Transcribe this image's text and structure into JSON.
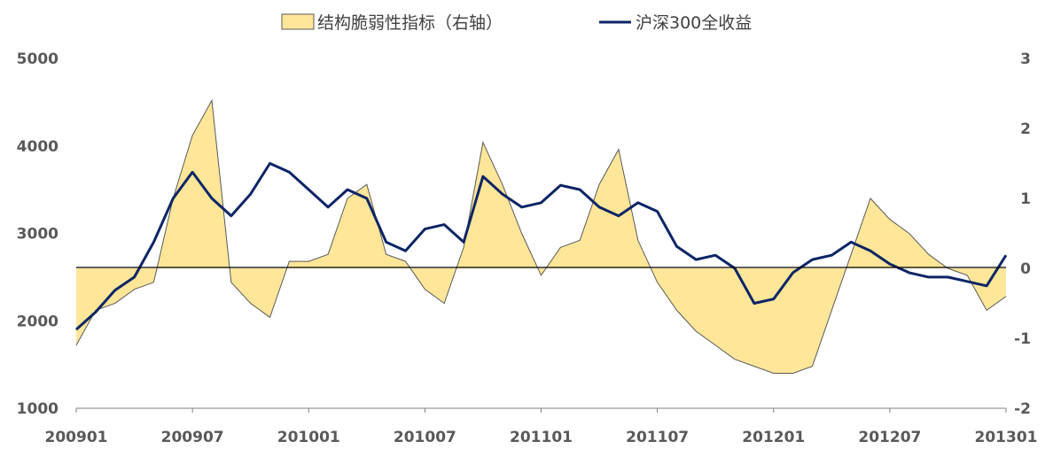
{
  "chart_data": {
    "type": "area+line",
    "legend": [
      {
        "label": "结构脆弱性指标（右轴）",
        "kind": "area",
        "color": "#FFE699",
        "stroke": "#595959"
      },
      {
        "label": "沪深300全收益",
        "kind": "line",
        "color": "#0D2566"
      }
    ],
    "x_ticks": [
      "200901",
      "200907",
      "201001",
      "201007",
      "201101",
      "201107",
      "201201",
      "201207",
      "201301"
    ],
    "y_left": {
      "ticks": [
        "5000",
        "4000",
        "3000",
        "2000",
        "1000"
      ],
      "lim": [
        1000,
        5000
      ]
    },
    "y_right": {
      "ticks": [
        "3",
        "2",
        "1",
        "0",
        "-1",
        "-2"
      ],
      "lim": [
        -2,
        3
      ]
    },
    "grid": false,
    "legend_placement": "top",
    "x_range": [
      "2009-01",
      "2013-01"
    ],
    "series": [
      {
        "name": "结构脆弱性指标（右轴）",
        "axis": "right",
        "x": [
          "2009-01",
          "2009-02",
          "2009-03",
          "2009-04",
          "2009-05",
          "2009-06",
          "2009-07",
          "2009-08",
          "2009-09",
          "2009-10",
          "2009-11",
          "2009-12",
          "2010-01",
          "2010-02",
          "2010-03",
          "2010-04",
          "2010-05",
          "2010-06",
          "2010-07",
          "2010-08",
          "2010-09",
          "2010-10",
          "2010-11",
          "2010-12",
          "2011-01",
          "2011-02",
          "2011-03",
          "2011-04",
          "2011-05",
          "2011-06",
          "2011-07",
          "2011-08",
          "2011-09",
          "2011-10",
          "2011-11",
          "2011-12",
          "2012-01",
          "2012-02",
          "2012-03",
          "2012-04",
          "2012-05",
          "2012-06",
          "2012-07",
          "2012-08",
          "2012-09",
          "2012-10",
          "2012-11",
          "2012-12",
          "2013-01"
        ],
        "values": [
          -1.1,
          -0.6,
          -0.5,
          -0.3,
          -0.2,
          1.0,
          1.9,
          2.4,
          -0.2,
          -0.5,
          -0.7,
          0.1,
          0.1,
          0.2,
          1.0,
          1.2,
          0.2,
          0.1,
          -0.3,
          -0.5,
          0.3,
          1.8,
          1.2,
          0.5,
          -0.1,
          0.3,
          0.4,
          1.2,
          1.7,
          0.4,
          -0.2,
          -0.6,
          -0.9,
          -1.1,
          -1.3,
          -1.4,
          -1.5,
          -1.5,
          -1.4,
          -0.6,
          0.2,
          1.0,
          0.7,
          0.5,
          0.2,
          0.0,
          -0.1,
          -0.6,
          -0.4
        ]
      },
      {
        "name": "沪深300全收益",
        "axis": "left",
        "x": [
          "2009-01",
          "2009-02",
          "2009-03",
          "2009-04",
          "2009-05",
          "2009-06",
          "2009-07",
          "2009-08",
          "2009-09",
          "2009-10",
          "2009-11",
          "2009-12",
          "2010-01",
          "2010-02",
          "2010-03",
          "2010-04",
          "2010-05",
          "2010-06",
          "2010-07",
          "2010-08",
          "2010-09",
          "2010-10",
          "2010-11",
          "2010-12",
          "2011-01",
          "2011-02",
          "2011-03",
          "2011-04",
          "2011-05",
          "2011-06",
          "2011-07",
          "2011-08",
          "2011-09",
          "2011-10",
          "2011-11",
          "2011-12",
          "2012-01",
          "2012-02",
          "2012-03",
          "2012-04",
          "2012-05",
          "2012-06",
          "2012-07",
          "2012-08",
          "2012-09",
          "2012-10",
          "2012-11",
          "2012-12",
          "2013-01"
        ],
        "values": [
          1900,
          2100,
          2350,
          2500,
          2900,
          3400,
          3700,
          3400,
          3200,
          3450,
          3800,
          3700,
          3500,
          3300,
          3500,
          3400,
          2900,
          2800,
          3050,
          3100,
          2900,
          3650,
          3450,
          3300,
          3350,
          3550,
          3500,
          3300,
          3200,
          3350,
          3250,
          2850,
          2700,
          2750,
          2600,
          2200,
          2250,
          2550,
          2700,
          2750,
          2900,
          2800,
          2650,
          2550,
          2500,
          2500,
          2450,
          2400,
          2750
        ]
      }
    ]
  }
}
